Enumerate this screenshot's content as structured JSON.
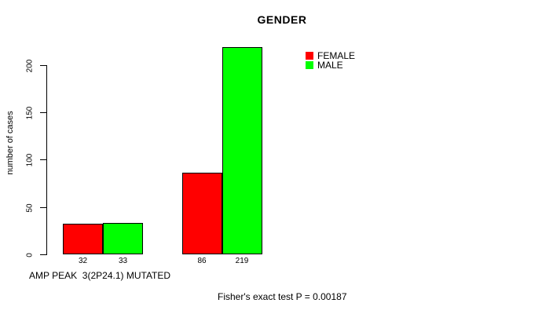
{
  "title": "GENDER",
  "y_axis": {
    "label": "number of cases",
    "ticks": [
      0,
      50,
      100,
      150,
      200
    ]
  },
  "x_axis": {
    "label": "AMP PEAK  3(2P24.1) MUTATED"
  },
  "legend": {
    "items": [
      {
        "label": "FEMALE",
        "color": "#ff0000"
      },
      {
        "label": "MALE",
        "color": "#00ff00"
      }
    ]
  },
  "footnote": "Fisher's exact test P = 0.00187",
  "colors": {
    "female": "#ff0000",
    "male": "#00ff00",
    "text": "#000000",
    "background": "#ffffff"
  },
  "chart_data": {
    "type": "bar",
    "title": "GENDER",
    "xlabel": "AMP PEAK  3(2P24.1) MUTATED",
    "ylabel": "number of cases",
    "ylim": [
      0,
      220
    ],
    "yticks": [
      0,
      50,
      100,
      150,
      200
    ],
    "grid": false,
    "legend_position": "top-right",
    "series": [
      {
        "name": "FEMALE",
        "color": "#ff0000",
        "values": [
          32,
          86
        ]
      },
      {
        "name": "MALE",
        "color": "#00ff00",
        "values": [
          33,
          219
        ]
      }
    ],
    "groups": [
      {
        "bars": [
          {
            "series": "FEMALE",
            "value": 32,
            "label": "32",
            "color": "#ff0000"
          },
          {
            "series": "MALE",
            "value": 33,
            "label": "33",
            "color": "#00ff00"
          }
        ]
      },
      {
        "bars": [
          {
            "series": "FEMALE",
            "value": 86,
            "label": "86",
            "color": "#ff0000"
          },
          {
            "series": "MALE",
            "value": 219,
            "label": "219",
            "color": "#00ff00"
          }
        ]
      }
    ],
    "annotation": "Fisher's exact test P = 0.00187"
  }
}
